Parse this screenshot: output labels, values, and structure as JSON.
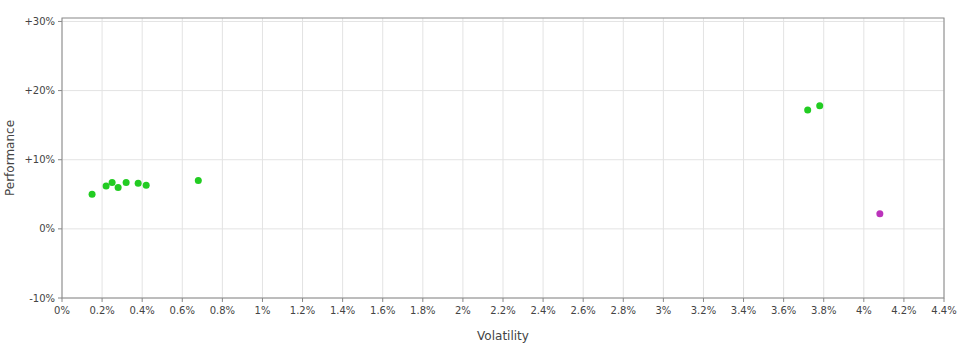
{
  "chart_data": {
    "type": "scatter",
    "xlabel": "Volatility",
    "ylabel": "Performance",
    "xlim": [
      0,
      0.044
    ],
    "ylim": [
      -0.1,
      0.305
    ],
    "xticks": [
      {
        "value": 0,
        "label": "0%"
      },
      {
        "value": 0.002,
        "label": "0.2%"
      },
      {
        "value": 0.004,
        "label": "0.4%"
      },
      {
        "value": 0.006,
        "label": "0.6%"
      },
      {
        "value": 0.008,
        "label": "0.8%"
      },
      {
        "value": 0.01,
        "label": "1%"
      },
      {
        "value": 0.012,
        "label": "1.2%"
      },
      {
        "value": 0.014,
        "label": "1.4%"
      },
      {
        "value": 0.016,
        "label": "1.6%"
      },
      {
        "value": 0.018,
        "label": "1.8%"
      },
      {
        "value": 0.02,
        "label": "2%"
      },
      {
        "value": 0.022,
        "label": "2.2%"
      },
      {
        "value": 0.024,
        "label": "2.4%"
      },
      {
        "value": 0.026,
        "label": "2.6%"
      },
      {
        "value": 0.028,
        "label": "2.8%"
      },
      {
        "value": 0.03,
        "label": "3%"
      },
      {
        "value": 0.032,
        "label": "3.2%"
      },
      {
        "value": 0.034,
        "label": "3.4%"
      },
      {
        "value": 0.036,
        "label": "3.6%"
      },
      {
        "value": 0.038,
        "label": "3.8%"
      },
      {
        "value": 0.04,
        "label": "4%"
      },
      {
        "value": 0.042,
        "label": "4.2%"
      },
      {
        "value": 0.044,
        "label": "4.4%"
      }
    ],
    "yticks": [
      {
        "value": -0.1,
        "label": "-10%"
      },
      {
        "value": 0.0,
        "label": "0%"
      },
      {
        "value": 0.1,
        "label": "+10%"
      },
      {
        "value": 0.2,
        "label": "+20%"
      },
      {
        "value": 0.3,
        "label": "+30%"
      }
    ],
    "grid": true,
    "series": [
      {
        "color": "#22cc22",
        "x": [
          0.0015,
          0.0022,
          0.0025,
          0.0028,
          0.0032,
          0.0038,
          0.0042,
          0.0068,
          0.0372,
          0.0378
        ],
        "values": [
          0.05,
          0.062,
          0.067,
          0.06,
          0.067,
          0.066,
          0.063,
          0.07,
          0.172,
          0.178
        ]
      },
      {
        "color": "#bb33bb",
        "x": [
          0.0408
        ],
        "values": [
          0.022
        ]
      }
    ]
  }
}
